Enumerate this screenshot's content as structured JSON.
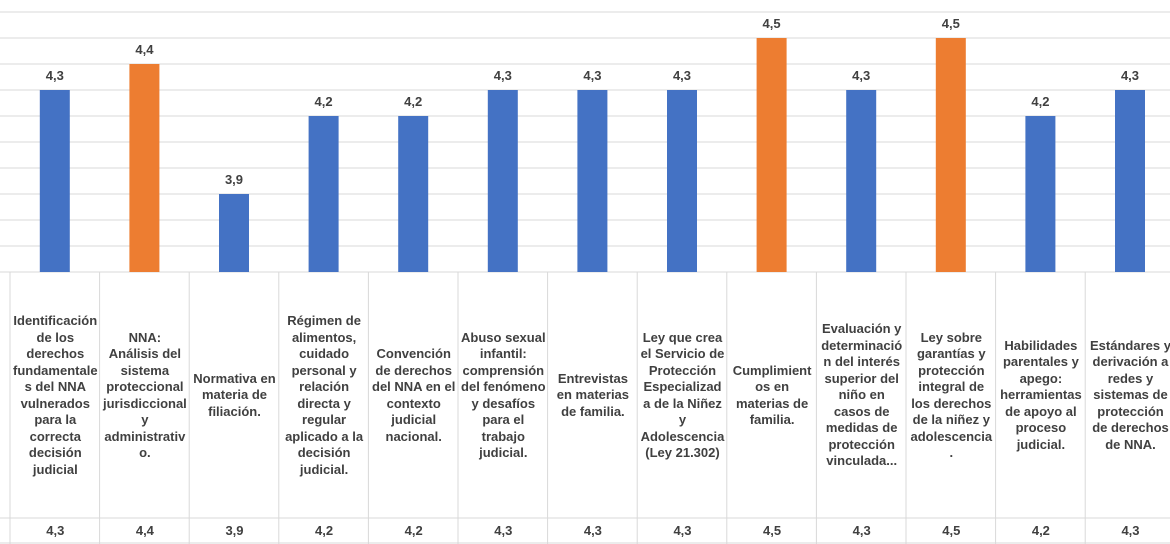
{
  "chart_data": {
    "type": "bar",
    "categories": [
      "Identificación de los derechos fundamentales del NNA vulnerados para la correcta decisión judicial",
      "NNA: Análisis del sistema proteccional jurisdiccional y administrativo.",
      "Normativa en materia de filiación.",
      "Régimen de alimentos, cuidado personal y relación directa y regular aplicado a la decisión judicial.",
      "Convención de derechos del NNA en el contexto judicial nacional.",
      "Abuso sexual infantil: comprensión del fenómeno y desafíos para el trabajo judicial.",
      "Entrevistas en materias de familia.",
      "Ley que crea el Servicio de Protección Especializada de la Niñez y Adolescencia (Ley 21.302)",
      "Cumplimientos en materias de familia.",
      "Evaluación y determinación del interés superior del niño en casos de medidas de protección vinculada...",
      "Ley sobre garantías y protección integral de los derechos de la niñez y adolescencia.",
      "Habilidades parentales y apego: herramientas de apoyo al proceso judicial.",
      "Estándares y derivación a redes y sistemas de protección de derechos de NNA."
    ],
    "values": [
      4.3,
      4.4,
      3.9,
      4.2,
      4.2,
      4.3,
      4.3,
      4.3,
      4.5,
      4.3,
      4.5,
      4.2,
      4.3
    ],
    "value_labels": [
      "4,3",
      "4,4",
      "3,9",
      "4,2",
      "4,2",
      "4,3",
      "4,3",
      "4,3",
      "4,5",
      "4,3",
      "4,5",
      "4,2",
      "4,3"
    ],
    "colors": [
      "#4472c4",
      "#ed7d31",
      "#4472c4",
      "#4472c4",
      "#4472c4",
      "#4472c4",
      "#4472c4",
      "#4472c4",
      "#ed7d31",
      "#4472c4",
      "#ed7d31",
      "#4472c4",
      "#4472c4"
    ],
    "ylim": [
      3.6,
      4.6
    ],
    "yticks": [
      3.6,
      3.7,
      3.8,
      3.9,
      4.0,
      4.1,
      4.2,
      4.3,
      4.4,
      4.5,
      4.6
    ],
    "grid": true
  }
}
